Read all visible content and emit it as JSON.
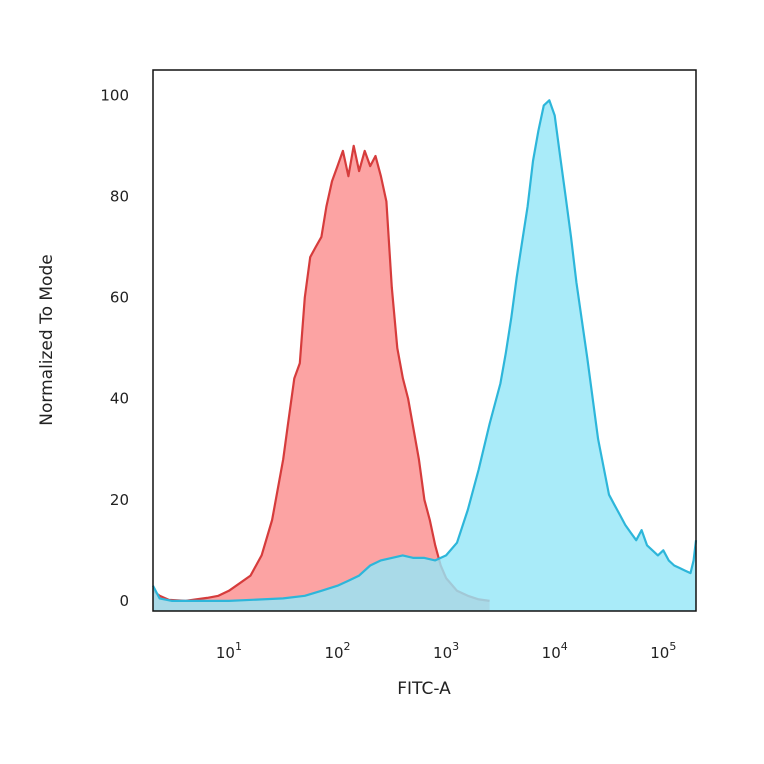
{
  "chart_data": {
    "type": "area",
    "xlabel": "FITC-A",
    "ylabel": "Normalized To Mode",
    "xscale": "log",
    "xlim": [
      2,
      200000
    ],
    "ylim": [
      -2,
      105
    ],
    "grid": false,
    "legend": "none",
    "y_ticks": [
      0,
      20,
      40,
      60,
      80,
      100
    ],
    "x_ticks": [
      {
        "value": 10,
        "base": "10",
        "exp": "1"
      },
      {
        "value": 100,
        "base": "10",
        "exp": "2"
      },
      {
        "value": 1000,
        "base": "10",
        "exp": "3"
      },
      {
        "value": 10000,
        "base": "10",
        "exp": "4"
      },
      {
        "value": 100000,
        "base": "10",
        "exp": "5"
      }
    ],
    "series": [
      {
        "fill": "#fca3a3",
        "stroke": "#d63c3c",
        "points": [
          [
            2,
            2
          ],
          [
            2.3,
            1
          ],
          [
            2.8,
            0.2
          ],
          [
            4,
            0
          ],
          [
            5,
            0.3
          ],
          [
            6.3,
            0.6
          ],
          [
            8,
            1
          ],
          [
            10,
            2
          ],
          [
            12.6,
            3.5
          ],
          [
            15.8,
            5
          ],
          [
            20,
            9
          ],
          [
            25,
            16
          ],
          [
            31.6,
            28
          ],
          [
            35,
            35
          ],
          [
            40,
            44
          ],
          [
            45,
            47
          ],
          [
            50,
            60
          ],
          [
            56,
            68
          ],
          [
            63,
            70
          ],
          [
            71,
            72
          ],
          [
            79,
            78
          ],
          [
            89,
            83
          ],
          [
            100,
            86
          ],
          [
            112,
            89
          ],
          [
            126,
            84
          ],
          [
            141,
            90
          ],
          [
            158,
            85
          ],
          [
            178,
            89
          ],
          [
            200,
            86
          ],
          [
            224,
            88
          ],
          [
            251,
            84
          ],
          [
            282,
            79
          ],
          [
            316,
            62
          ],
          [
            355,
            50
          ],
          [
            400,
            44
          ],
          [
            447,
            40
          ],
          [
            501,
            34
          ],
          [
            562,
            28
          ],
          [
            631,
            20
          ],
          [
            708,
            16
          ],
          [
            794,
            11
          ],
          [
            891,
            7
          ],
          [
            1000,
            4.5
          ],
          [
            1259,
            2
          ],
          [
            1585,
            1
          ],
          [
            2000,
            0.3
          ],
          [
            2512,
            0
          ]
        ]
      },
      {
        "fill": "#96e6f8",
        "stroke": "#2db6da",
        "points": [
          [
            2,
            3
          ],
          [
            2.3,
            0.5
          ],
          [
            3,
            0
          ],
          [
            10,
            0
          ],
          [
            31.6,
            0.5
          ],
          [
            50,
            1
          ],
          [
            71,
            2
          ],
          [
            100,
            3
          ],
          [
            126,
            4
          ],
          [
            158,
            5
          ],
          [
            200,
            7
          ],
          [
            251,
            8
          ],
          [
            316,
            8.5
          ],
          [
            398,
            9
          ],
          [
            501,
            8.5
          ],
          [
            631,
            8.5
          ],
          [
            794,
            8
          ],
          [
            1000,
            9
          ],
          [
            1259,
            11.5
          ],
          [
            1585,
            18
          ],
          [
            1995,
            26
          ],
          [
            2512,
            35
          ],
          [
            3162,
            43
          ],
          [
            3548,
            49
          ],
          [
            3981,
            56
          ],
          [
            4467,
            64
          ],
          [
            5012,
            71
          ],
          [
            5623,
            78
          ],
          [
            6310,
            87
          ],
          [
            7079,
            93
          ],
          [
            7943,
            98
          ],
          [
            8913,
            99
          ],
          [
            10000,
            96
          ],
          [
            11220,
            88
          ],
          [
            12589,
            80
          ],
          [
            14125,
            72
          ],
          [
            15849,
            63
          ],
          [
            19953,
            48
          ],
          [
            25119,
            32
          ],
          [
            31623,
            21
          ],
          [
            35481,
            19
          ],
          [
            39811,
            17
          ],
          [
            44668,
            15
          ],
          [
            50119,
            13.5
          ],
          [
            56234,
            12
          ],
          [
            63096,
            14
          ],
          [
            70795,
            11
          ],
          [
            79433,
            10
          ],
          [
            89125,
            9
          ],
          [
            100000,
            10
          ],
          [
            112202,
            8
          ],
          [
            125893,
            7
          ],
          [
            141254,
            6.5
          ],
          [
            158489,
            6
          ],
          [
            177828,
            5.5
          ],
          [
            190000,
            8
          ],
          [
            200000,
            12
          ]
        ]
      }
    ]
  }
}
